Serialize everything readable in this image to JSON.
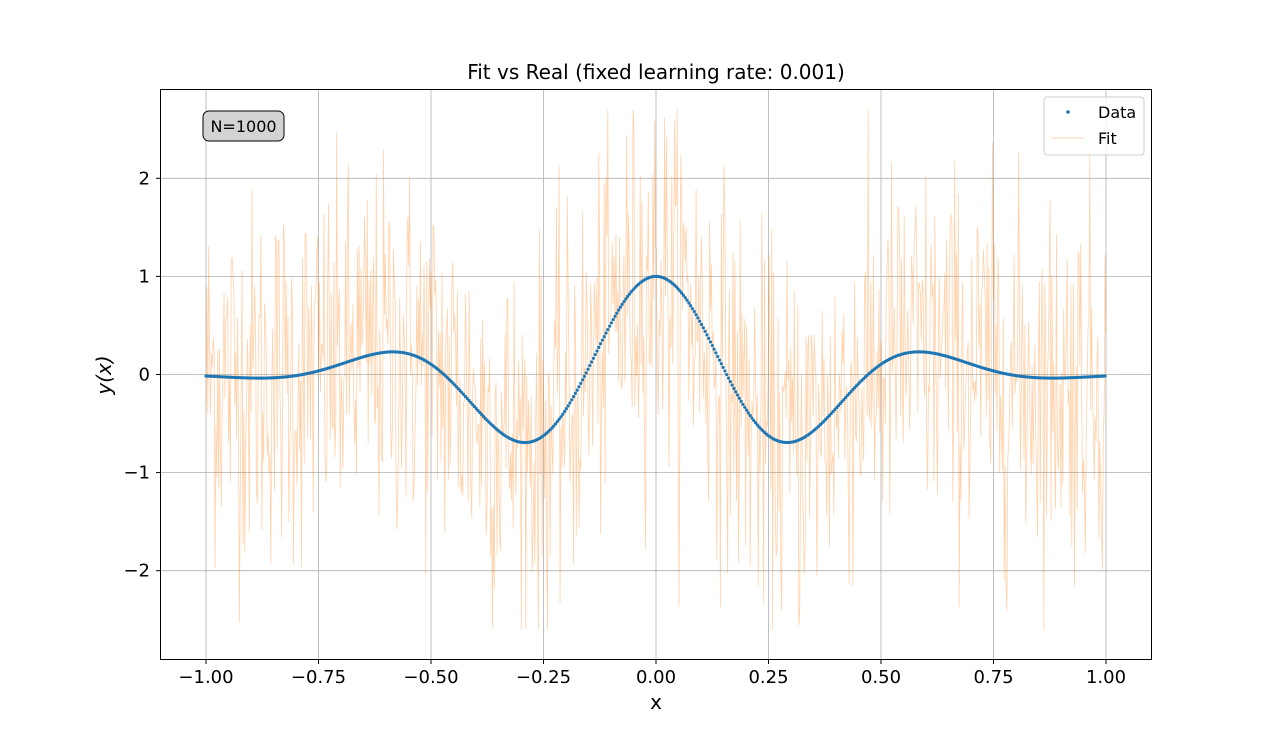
{
  "chart_data": {
    "type": "scatter",
    "title": "Fit vs Real (fixed learning rate: 0.001)",
    "xlabel": "x",
    "ylabel": "y(x)",
    "xlim": [
      -1.1,
      1.1
    ],
    "ylim": [
      -2.9,
      2.9
    ],
    "xticks": [
      -1.0,
      -0.75,
      -0.5,
      -0.25,
      0.0,
      0.25,
      0.5,
      0.75,
      1.0
    ],
    "xtick_labels": [
      "−1.00",
      "−0.75",
      "−0.50",
      "−0.25",
      "0.00",
      "0.25",
      "0.50",
      "0.75",
      "1.00"
    ],
    "yticks": [
      -2,
      -1,
      0,
      1,
      2
    ],
    "ytick_labels": [
      "−2",
      "−1",
      "0",
      "1",
      "2"
    ],
    "grid": true,
    "legend_position": "top-right",
    "annotation": "N=1000",
    "series": [
      {
        "name": "Data",
        "kind": "markers",
        "color": "#1f77b4",
        "function": "cos(10x)*exp(-4x^2)",
        "n_points": 1000,
        "x_range": [
          -1.0,
          1.0
        ]
      },
      {
        "name": "Fit",
        "kind": "line",
        "color": "#ff7f0e",
        "alpha": 0.35,
        "n_points": 1000,
        "x_range": [
          -1.0,
          1.0
        ],
        "approx_range": [
          -2.6,
          2.7
        ]
      }
    ]
  }
}
